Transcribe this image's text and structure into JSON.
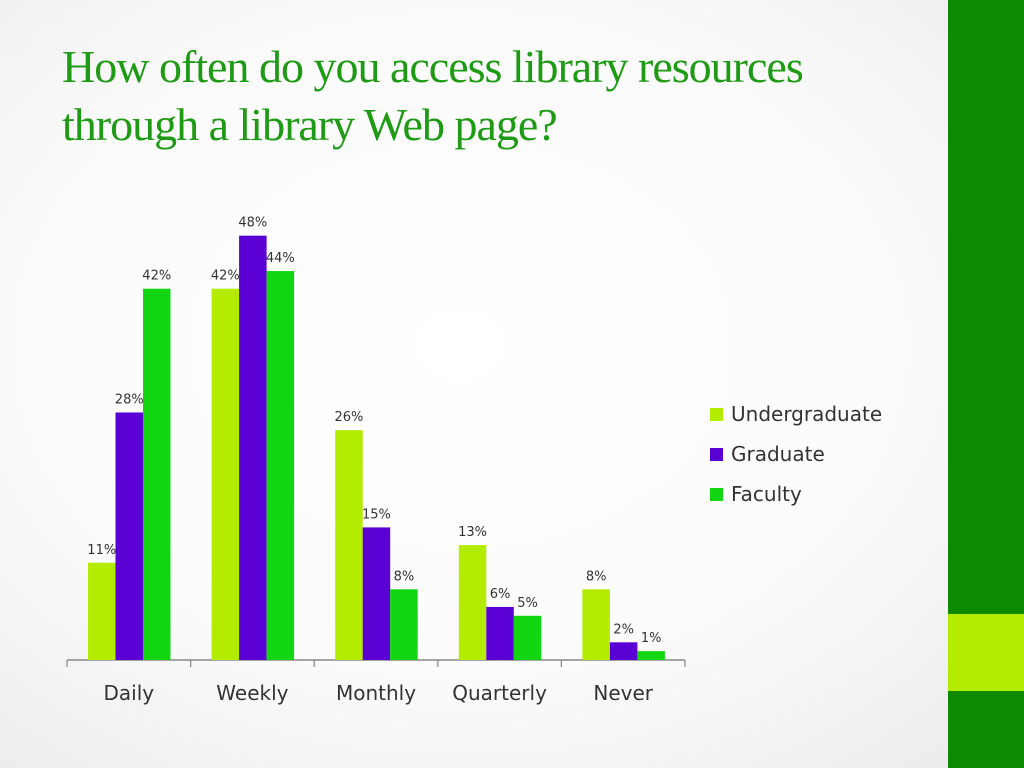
{
  "title": "How often do you access library resources through a library Web page?",
  "colors": {
    "title": "#1e9a14",
    "side_dark": "#0e8a00",
    "side_light": "#b3ec00"
  },
  "chart_data": {
    "type": "bar",
    "categories": [
      "Daily",
      "Weekly",
      "Monthly",
      "Quarterly",
      "Never"
    ],
    "series": [
      {
        "name": "Undergraduate",
        "color": "#b3ec00",
        "values": [
          11,
          42,
          26,
          13,
          8
        ]
      },
      {
        "name": "Graduate",
        "color": "#5a00d4",
        "values": [
          28,
          48,
          15,
          6,
          2
        ]
      },
      {
        "name": "Faculty",
        "color": "#12d612",
        "values": [
          42,
          44,
          8,
          5,
          1
        ]
      }
    ],
    "value_suffix": "%",
    "ylim": [
      0,
      50
    ],
    "grid": false,
    "legend_position": "right"
  }
}
